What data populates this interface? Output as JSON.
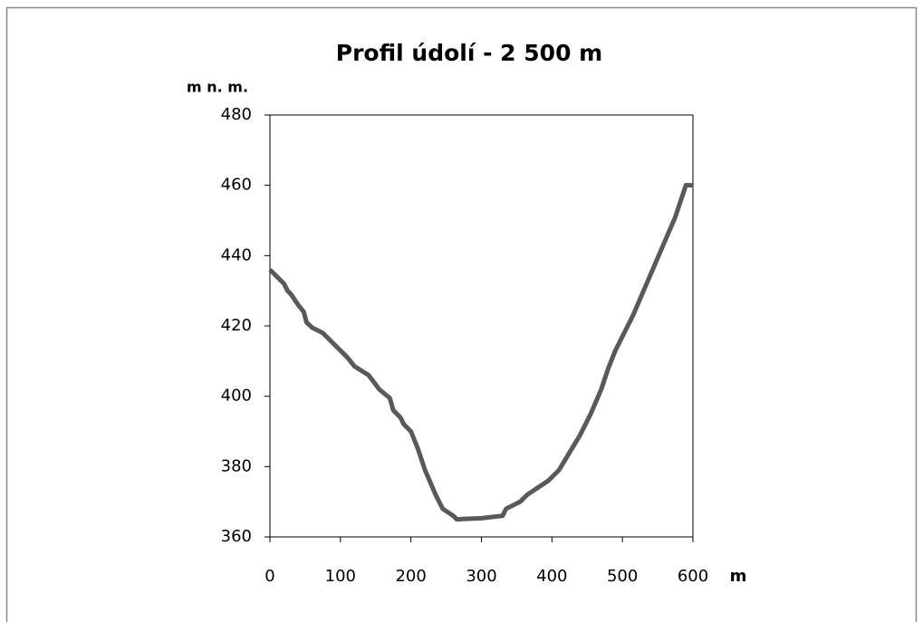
{
  "chart_data": {
    "type": "line",
    "title": "Profil údolí - 2 500 m",
    "ylabel": "m n. m.",
    "xlabel": "m",
    "x": [
      0,
      10,
      20,
      25,
      30,
      40,
      48,
      52,
      60,
      75,
      90,
      110,
      120,
      140,
      155,
      170,
      175,
      185,
      190,
      200,
      210,
      220,
      235,
      245,
      260,
      265,
      300,
      330,
      335,
      345,
      355,
      365,
      380,
      395,
      410,
      425,
      440,
      455,
      470,
      480,
      490,
      500,
      515,
      530,
      545,
      560,
      575,
      585,
      590,
      600
    ],
    "series": [
      {
        "color": "#595959",
        "values": [
          436,
          434,
          432,
          430,
          429,
          426,
          424,
          421,
          419.5,
          418,
          415,
          411,
          408.5,
          406,
          402,
          399.5,
          396,
          394,
          392,
          390,
          385,
          379,
          372,
          368,
          366,
          365,
          365.3,
          366,
          368,
          369,
          370,
          372,
          374,
          376,
          379,
          384,
          389,
          395,
          402,
          408,
          413,
          417,
          423,
          430,
          437,
          444,
          451,
          457,
          460,
          460
        ]
      }
    ],
    "xlim": [
      0,
      600
    ],
    "xticks": [
      0,
      100,
      200,
      300,
      400,
      500,
      600
    ],
    "ylim": [
      360,
      480
    ],
    "yticks": [
      360,
      380,
      400,
      420,
      440,
      460,
      480
    ]
  }
}
